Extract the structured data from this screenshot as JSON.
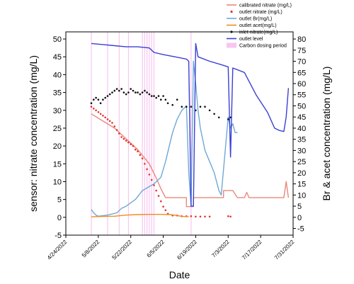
{
  "chart_data": {
    "type": "line",
    "xlabel": "Date",
    "ylabel": "sensor: nitrate concentration (mg/L)",
    "y2label": "Br & acet concentration (mg/L)",
    "xlim": [
      "2022-04-24",
      "2022-07-31"
    ],
    "x_ticks": [
      "4/24/2022",
      "5/8/2022",
      "5/22/2022",
      "6/5/2022",
      "6/19/2022",
      "7/3/2022",
      "7/17/2022",
      "7/31/2022"
    ],
    "ylim": [
      -5,
      52
    ],
    "y_ticks": [
      "-5",
      "0",
      "5",
      "10",
      "15",
      "20",
      "25",
      "30",
      "35",
      "40",
      "45",
      "50"
    ],
    "y2lim": [
      -8,
      83.2
    ],
    "y2_ticks": [
      "-5",
      "0",
      "5",
      "10",
      "15",
      "20",
      "25",
      "30",
      "35",
      "40",
      "45",
      "50",
      "55",
      "60",
      "65",
      "70",
      "75",
      "80"
    ],
    "legend_position": "top-right",
    "legend": [
      {
        "label": "calibrated nitrate (mg/L)",
        "color": "#e8897a",
        "kind": "line"
      },
      {
        "label": "outlet nitrate (mg/L)",
        "color": "#e53030",
        "kind": "dot"
      },
      {
        "label": "outlet Br(mg/L)",
        "color": "#6fa8d6",
        "kind": "line"
      },
      {
        "label": "outlet acet(mg/L)",
        "color": "#f08a24",
        "kind": "line"
      },
      {
        "label": "inlet nitrate(mg/L)",
        "color": "#111111",
        "kind": "dot"
      },
      {
        "label": "outlet level",
        "color": "#3a3fd4",
        "kind": "line"
      },
      {
        "label": "Carbon dosing period",
        "color": "#f7c6f0",
        "kind": "box"
      }
    ],
    "series": [
      {
        "axis": "left",
        "kind": "line",
        "color": "#e8897a",
        "x": [
          "2022-05-05",
          "2022-05-10",
          "2022-05-15",
          "2022-05-20",
          "2022-05-25",
          "2022-05-30",
          "2022-06-02",
          "2022-06-04",
          "2022-06-06",
          "2022-06-15",
          "2022-06-15",
          "2022-06-18",
          "2022-06-18",
          "2022-07-01",
          "2022-07-01",
          "2022-07-05",
          "2022-07-06",
          "2022-07-07",
          "2022-07-10",
          "2022-07-11",
          "2022-07-12",
          "2022-07-20",
          "2022-07-27",
          "2022-07-28",
          "2022-07-29"
        ],
        "y": [
          29,
          27,
          25,
          22,
          19,
          15,
          11,
          8,
          5.5,
          5.5,
          3,
          3,
          5.5,
          5.5,
          7.5,
          7.5,
          6.5,
          5.5,
          5.5,
          7,
          5.5,
          5.5,
          5.5,
          10,
          5.5
        ]
      },
      {
        "axis": "left",
        "kind": "dot",
        "color": "#e53030",
        "x": [
          "2022-05-05",
          "2022-05-06",
          "2022-05-07",
          "2022-05-08",
          "2022-05-09",
          "2022-05-10",
          "2022-05-11",
          "2022-05-12",
          "2022-05-13",
          "2022-05-14",
          "2022-05-15",
          "2022-05-16",
          "2022-05-17",
          "2022-05-18",
          "2022-05-19",
          "2022-05-20",
          "2022-05-21",
          "2022-05-22",
          "2022-05-23",
          "2022-05-24",
          "2022-05-25",
          "2022-05-26",
          "2022-05-27",
          "2022-05-28",
          "2022-05-29",
          "2022-05-30",
          "2022-05-31",
          "2022-06-01",
          "2022-06-02",
          "2022-06-03",
          "2022-06-04",
          "2022-06-05",
          "2022-06-06",
          "2022-06-07",
          "2022-06-09",
          "2022-06-11",
          "2022-06-13",
          "2022-06-15",
          "2022-06-17",
          "2022-06-19",
          "2022-06-21",
          "2022-06-23",
          "2022-06-25",
          "2022-07-03",
          "2022-07-04"
        ],
        "y": [
          31,
          30.5,
          30,
          29.5,
          29,
          28.5,
          28,
          27.5,
          27,
          26.5,
          25.5,
          24.5,
          23.5,
          22.5,
          22,
          21.5,
          21,
          20.5,
          20,
          19,
          18.5,
          17.5,
          16.5,
          15,
          13.5,
          12,
          10.5,
          9,
          7.5,
          6,
          4.5,
          3,
          2,
          1,
          0.5,
          0.5,
          0.3,
          0.3,
          0.3,
          0.2,
          0.2,
          0.2,
          0.2,
          0.3,
          0.2
        ]
      },
      {
        "axis": "right",
        "kind": "line",
        "color": "#6fa8d6",
        "x": [
          "2022-05-05",
          "2022-05-06",
          "2022-05-07",
          "2022-05-08",
          "2022-05-12",
          "2022-05-16",
          "2022-05-18",
          "2022-05-20",
          "2022-05-24",
          "2022-05-27",
          "2022-06-01",
          "2022-06-04",
          "2022-06-06",
          "2022-06-09",
          "2022-06-11",
          "2022-06-13",
          "2022-06-15",
          "2022-06-16",
          "2022-06-17",
          "2022-06-18",
          "2022-06-19",
          "2022-06-20",
          "2022-06-21",
          "2022-06-22",
          "2022-06-23",
          "2022-06-25",
          "2022-06-27",
          "2022-06-29",
          "2022-06-30",
          "2022-07-03",
          "2022-07-04",
          "2022-07-05",
          "2022-07-06",
          "2022-07-07"
        ],
        "y": [
          3.5,
          2,
          1,
          0.5,
          1,
          2,
          4,
          5,
          8,
          12,
          15,
          18,
          25,
          38,
          44,
          48,
          50,
          20,
          5,
          70,
          60,
          48,
          40,
          35,
          30,
          25,
          20,
          12,
          10,
          45,
          40,
          42,
          38,
          38
        ]
      },
      {
        "axis": "right",
        "kind": "line",
        "color": "#f08a24",
        "x": [
          "2022-05-05",
          "2022-05-10",
          "2022-05-15",
          "2022-05-20",
          "2022-05-25",
          "2022-05-30",
          "2022-06-04",
          "2022-06-08",
          "2022-06-11",
          "2022-06-13",
          "2022-06-16"
        ],
        "y": [
          0.2,
          0.4,
          0.5,
          1,
          1.2,
          1.3,
          1.3,
          1.2,
          0.8,
          0.4,
          0.3
        ]
      },
      {
        "axis": "left",
        "kind": "dot",
        "color": "#111111",
        "x": [
          "2022-05-05",
          "2022-05-06",
          "2022-05-07",
          "2022-05-08",
          "2022-05-09",
          "2022-05-10",
          "2022-05-11",
          "2022-05-12",
          "2022-05-13",
          "2022-05-14",
          "2022-05-15",
          "2022-05-16",
          "2022-05-17",
          "2022-05-18",
          "2022-05-19",
          "2022-05-20",
          "2022-05-21",
          "2022-05-22",
          "2022-05-23",
          "2022-05-24",
          "2022-05-25",
          "2022-05-26",
          "2022-05-27",
          "2022-05-28",
          "2022-05-29",
          "2022-05-30",
          "2022-05-31",
          "2022-06-01",
          "2022-06-02",
          "2022-06-03",
          "2022-06-04",
          "2022-06-05",
          "2022-06-06",
          "2022-06-07",
          "2022-06-09",
          "2022-06-11",
          "2022-06-13",
          "2022-06-15",
          "2022-06-17",
          "2022-06-19",
          "2022-06-21",
          "2022-06-23",
          "2022-06-25",
          "2022-06-27",
          "2022-06-29",
          "2022-07-03",
          "2022-07-04"
        ],
        "y": [
          32,
          33,
          33.5,
          33,
          32,
          33,
          33.5,
          34,
          34.5,
          35,
          35.5,
          36,
          35.5,
          36,
          35,
          34.5,
          35,
          36,
          35.5,
          35,
          35,
          34.5,
          35,
          35.5,
          35,
          34.5,
          34,
          34,
          33.5,
          34,
          33,
          34,
          33,
          32,
          31.5,
          33,
          31,
          31,
          31,
          30,
          31,
          31,
          30,
          29,
          28,
          27.5,
          28
        ]
      },
      {
        "axis": "right",
        "kind": "line",
        "color": "#3a3fd4",
        "x": [
          "2022-05-05",
          "2022-05-10",
          "2022-05-15",
          "2022-05-20",
          "2022-05-25",
          "2022-05-30",
          "2022-06-01",
          "2022-06-05",
          "2022-06-10",
          "2022-06-15",
          "2022-06-16",
          "2022-06-17",
          "2022-06-18",
          "2022-06-19",
          "2022-06-20",
          "2022-06-25",
          "2022-06-30",
          "2022-07-03",
          "2022-07-04",
          "2022-07-05",
          "2022-07-10",
          "2022-07-15",
          "2022-07-20",
          "2022-07-23",
          "2022-07-25",
          "2022-07-27",
          "2022-07-28",
          "2022-07-29"
        ],
        "y": [
          78,
          77.5,
          77,
          76.5,
          76.5,
          76,
          74,
          73,
          72,
          71,
          70,
          5,
          5,
          78,
          72,
          70,
          68.5,
          67.5,
          27,
          67,
          65,
          55,
          47,
          40,
          39,
          38.5,
          45,
          58
        ]
      }
    ],
    "dosing_dates": [
      "2022-05-05",
      "2022-05-12",
      "2022-05-17",
      "2022-05-21",
      "2022-05-27",
      "2022-05-28",
      "2022-05-29",
      "2022-05-30",
      "2022-05-31",
      "2022-06-01",
      "2022-06-17"
    ]
  }
}
